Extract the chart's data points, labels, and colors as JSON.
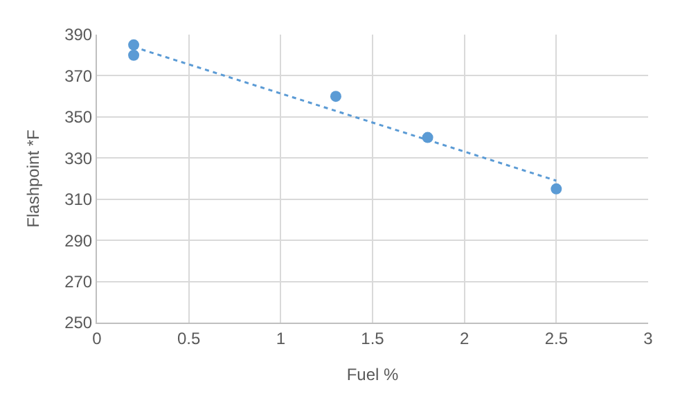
{
  "chart_data": {
    "type": "scatter",
    "xlabel": "Fuel %",
    "ylabel": "Flashpoint *F",
    "series": [
      {
        "color": "#5b9bd5",
        "x": [
          0.2,
          0.2,
          1.3,
          1.8,
          2.5
        ],
        "values": [
          385,
          380,
          360,
          340,
          315
        ],
        "marker": "circle"
      },
      {
        "type": "line",
        "color": "#5b9bd5",
        "x": [
          0.2,
          2.5
        ],
        "values": [
          384,
          319
        ],
        "line_style": "dotted",
        "marker": "none"
      }
    ],
    "xlim": [
      0,
      3
    ],
    "xticks": [
      0,
      0.5,
      1,
      1.5,
      2,
      2.5,
      3
    ],
    "ylim": [
      250,
      390
    ],
    "yticks": [
      250,
      270,
      290,
      310,
      330,
      350,
      370,
      390
    ],
    "grid": true
  }
}
